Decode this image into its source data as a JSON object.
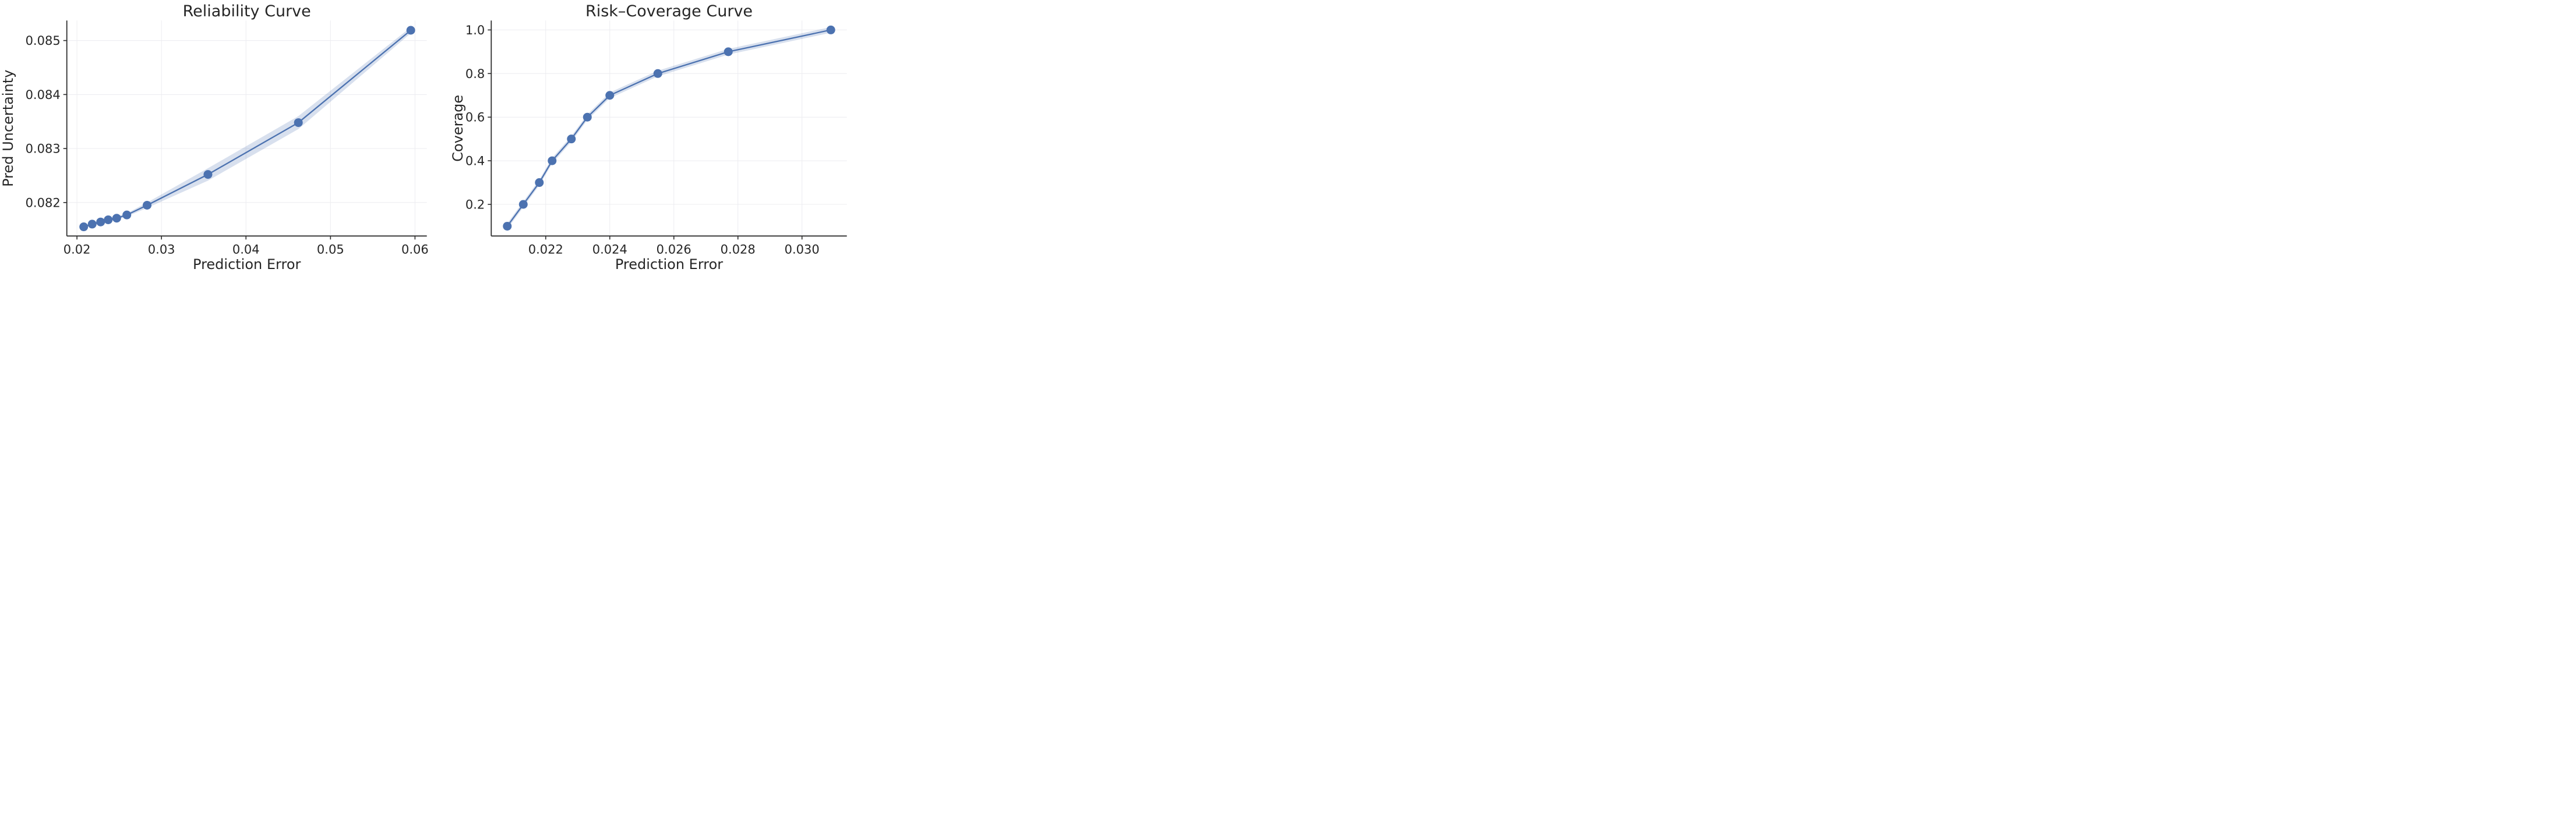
{
  "figure": {
    "accent_color": "#4C72B0",
    "band_color": "rgba(76,114,176,0.22)",
    "grid_color": "#ececf0",
    "spine_color": "#2e2e2e",
    "text_color": "#262626",
    "background": "#ffffff"
  },
  "chart_data": [
    {
      "type": "line",
      "title": "Reliability Curve",
      "xlabel": "Prediction Error",
      "ylabel": "Pred Uncertainty",
      "legend_position": "none",
      "grid": true,
      "marker": "circle",
      "x": [
        0.0208,
        0.0218,
        0.0228,
        0.0237,
        0.0247,
        0.0259,
        0.0283,
        0.0355,
        0.0462,
        0.0595
      ],
      "y": [
        0.08155,
        0.0816,
        0.08164,
        0.08168,
        0.08171,
        0.08177,
        0.08195,
        0.08252,
        0.08348,
        0.08519
      ],
      "band_halfwidth": [
        2e-05,
        2e-05,
        2.2e-05,
        2.5e-05,
        2.8e-05,
        3e-05,
        5e-05,
        0.000115,
        0.00012,
        5.5e-05
      ],
      "xlim": [
        0.0188,
        0.0614
      ],
      "ylim": [
        0.08138,
        0.08537
      ],
      "xticks": [
        0.02,
        0.03,
        0.04,
        0.05,
        0.06
      ],
      "xtick_labels": [
        "0.02",
        "0.03",
        "0.04",
        "0.05",
        "0.06"
      ],
      "yticks": [
        0.082,
        0.083,
        0.084,
        0.085
      ],
      "ytick_labels": [
        "0.082",
        "0.083",
        "0.084",
        "0.085"
      ]
    },
    {
      "type": "line",
      "title": "Risk–Coverage Curve",
      "xlabel": "Prediction Error",
      "ylabel": "Coverage",
      "legend_position": "none",
      "grid": true,
      "marker": "circle",
      "x": [
        0.0208,
        0.0213,
        0.0218,
        0.0222,
        0.0228,
        0.0233,
        0.024,
        0.0255,
        0.0277,
        0.0309
      ],
      "y": [
        0.1,
        0.2,
        0.3,
        0.4,
        0.5,
        0.6,
        0.7,
        0.8,
        0.9,
        1.0
      ],
      "band_halfwidth": [
        0.013,
        0.013,
        0.013,
        0.013,
        0.013,
        0.013,
        0.013,
        0.013,
        0.013,
        0.013
      ],
      "xlim": [
        0.0203,
        0.0314
      ],
      "ylim": [
        0.055,
        1.043
      ],
      "xticks": [
        0.022,
        0.024,
        0.026,
        0.028,
        0.03
      ],
      "xtick_labels": [
        "0.022",
        "0.024",
        "0.026",
        "0.028",
        "0.030"
      ],
      "yticks": [
        0.2,
        0.4,
        0.6,
        0.8,
        1.0
      ],
      "ytick_labels": [
        "0.2",
        "0.4",
        "0.6",
        "0.8",
        "1.0"
      ]
    }
  ]
}
